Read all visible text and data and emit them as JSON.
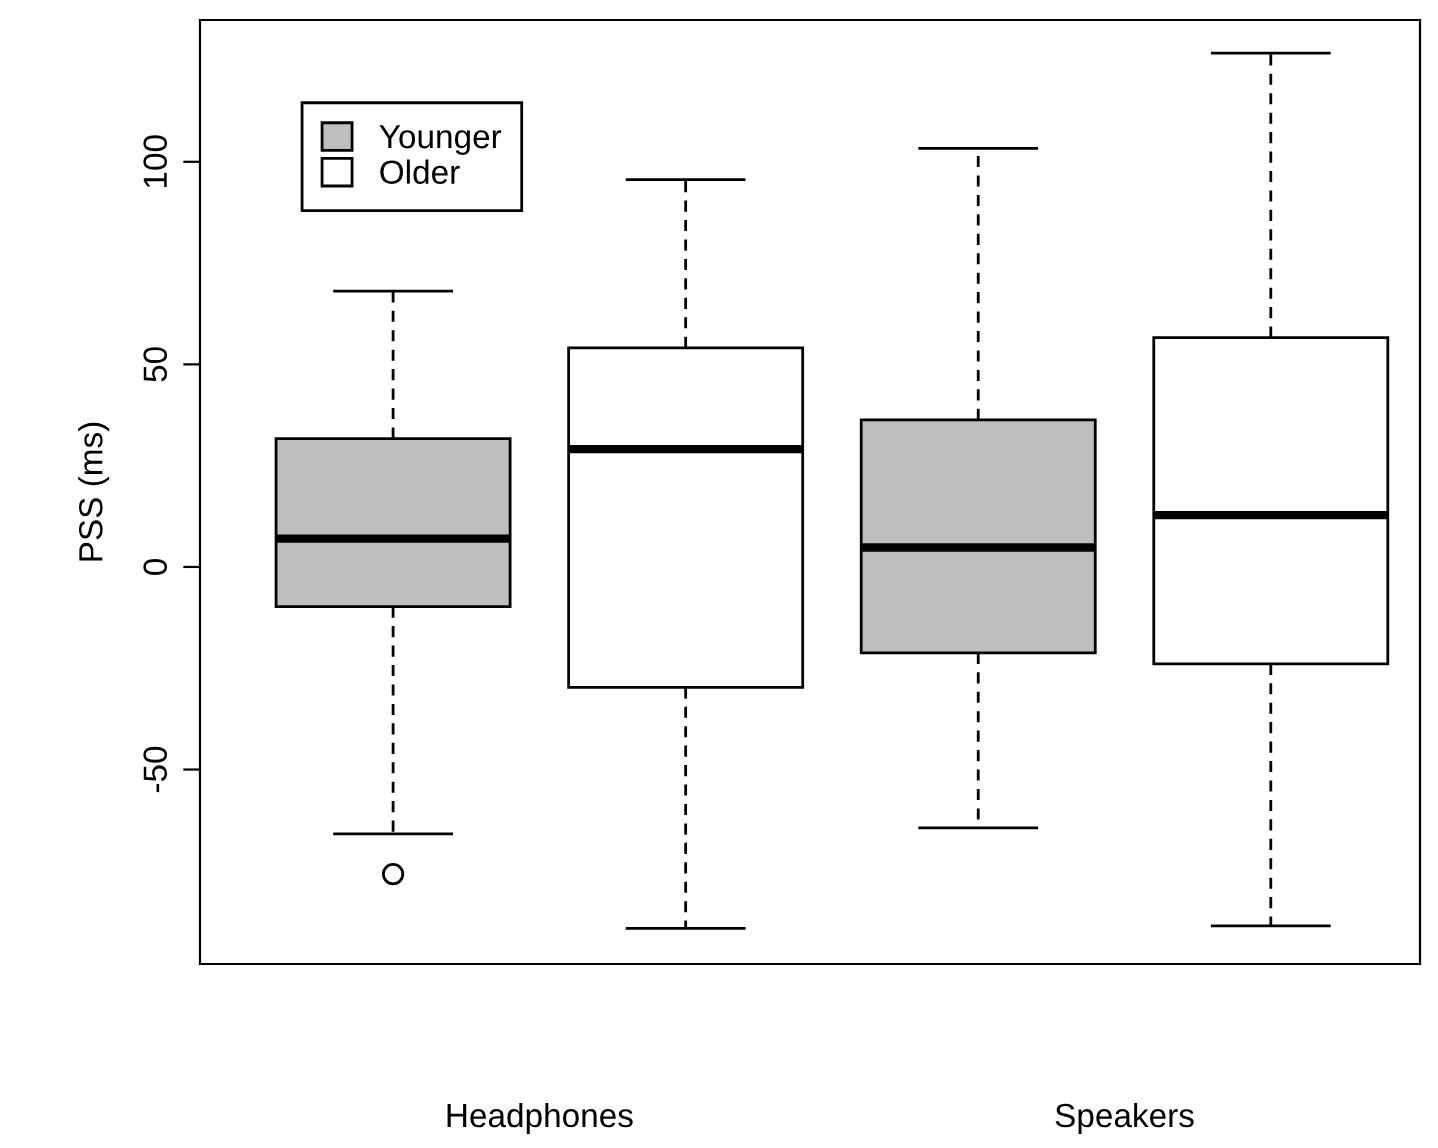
{
  "chart_data": {
    "type": "box",
    "ylabel": "PSS (ms)",
    "categories": [
      "Headphones",
      "Speakers"
    ],
    "ylim": [
      -98,
      135
    ],
    "yticks": [
      -50,
      0,
      50,
      100
    ],
    "legend": "top left",
    "series": [
      {
        "name": "Younger",
        "color": "#bebebe",
        "boxes": [
          {
            "low": -65.9,
            "q1": -9.8,
            "median": 7.0,
            "q3": 31.7,
            "high": 68.1,
            "outliers": [
              -75.8
            ]
          },
          {
            "low": -64.4,
            "q1": -21.2,
            "median": 4.8,
            "q3": 36.3,
            "high": 103.3
          }
        ]
      },
      {
        "name": "Older",
        "color": "#ffffff",
        "boxes": [
          {
            "low": -89.2,
            "q1": -29.7,
            "median": 29.1,
            "q3": 54.1,
            "high": 95.6
          },
          {
            "low": -88.6,
            "q1": -23.9,
            "median": 12.8,
            "q3": 56.6,
            "high": 126.8
          }
        ]
      }
    ]
  }
}
